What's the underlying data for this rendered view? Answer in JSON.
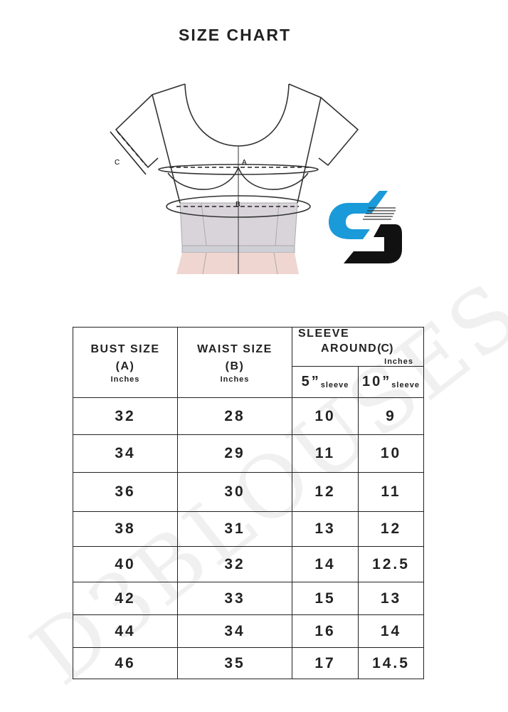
{
  "title": "SIZE CHART",
  "diagram": {
    "label_a": "A",
    "label_b": "B",
    "label_c": "C"
  },
  "watermark": "D3BLOUSES",
  "logo": {
    "colors": {
      "primary": "#1a9ad9",
      "secondary": "#111111"
    }
  },
  "table": {
    "headers": {
      "bust": "BUST SIZE",
      "bust_code": "(A)",
      "bust_unit": "Inches",
      "waist": "WAIST SIZE",
      "waist_code": "(B)",
      "waist_unit": "Inches",
      "sleeve_line1": "SLEEVE",
      "sleeve_line2": "AROUND",
      "sleeve_code": "(C)",
      "sleeve_unit": "Inches",
      "sleeve5": "5”",
      "sleeve10": "10”",
      "sleeve_word": "sleeve"
    },
    "rows": [
      [
        "32",
        "28",
        "10",
        "9"
      ],
      [
        "34",
        "29",
        "11",
        "10"
      ],
      [
        "36",
        "30",
        "12",
        "11"
      ],
      [
        "38",
        "31",
        "13",
        "12"
      ],
      [
        "40",
        "32",
        "14",
        "12.5"
      ],
      [
        "42",
        "33",
        "15",
        "13"
      ],
      [
        "44",
        "34",
        "16",
        "14"
      ],
      [
        "46",
        "35",
        "17",
        "14.5"
      ]
    ]
  }
}
